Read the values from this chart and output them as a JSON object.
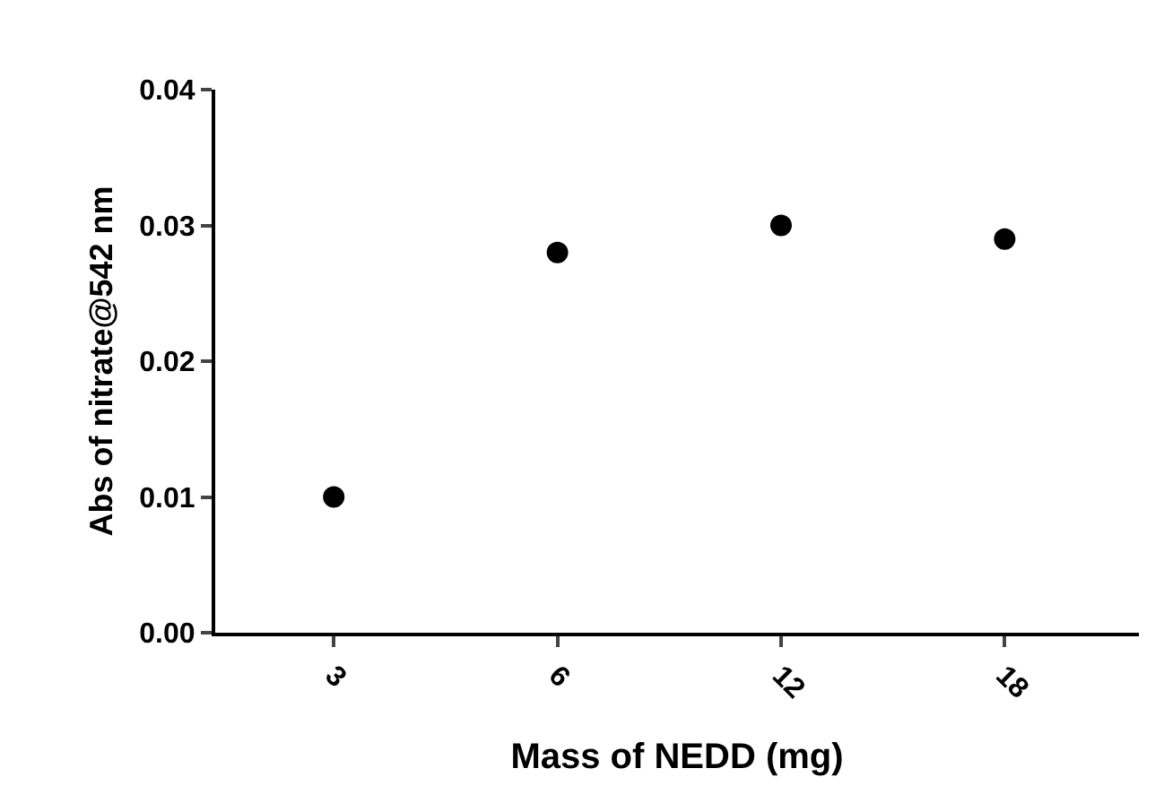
{
  "chart_data": {
    "type": "scatter",
    "xlabel": "Mass of NEDD (mg)",
    "ylabel": "Abs of nitrate@542 nm",
    "categories": [
      "3",
      "6",
      "12",
      "18"
    ],
    "series": [
      {
        "color": "#000000",
        "values": [
          0.01,
          0.028,
          0.03,
          0.029
        ]
      }
    ],
    "ylim": [
      0,
      0.04
    ],
    "yticks": [
      {
        "value": 0,
        "label": "0.00"
      },
      {
        "value": 0.01,
        "label": "0.01"
      },
      {
        "value": 0.02,
        "label": "0.02"
      },
      {
        "value": 0.03,
        "label": "0.03"
      },
      {
        "value": 0.04,
        "label": "0.04"
      }
    ],
    "marker": "circle"
  }
}
